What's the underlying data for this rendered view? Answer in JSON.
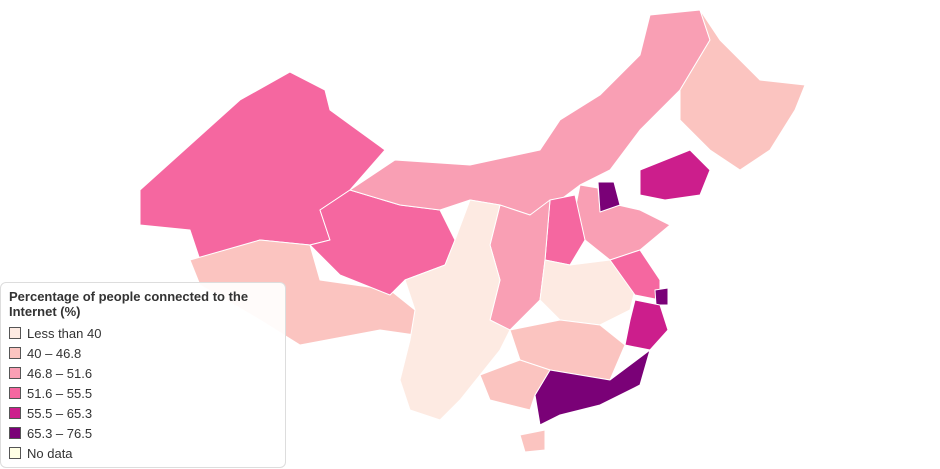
{
  "legend": {
    "title": "Percentage of people connected to the Internet (%)",
    "items": [
      {
        "label": "Less than 40",
        "color": "#fdeae2"
      },
      {
        "label": "40 – 46.8",
        "color": "#fbc4c0"
      },
      {
        "label": "46.8 – 51.6",
        "color": "#f99fb4"
      },
      {
        "label": "51.6 – 55.5",
        "color": "#f567a0"
      },
      {
        "label": "55.5 – 65.3",
        "color": "#cc1e8c"
      },
      {
        "label": "65.3 – 76.5",
        "color": "#7a0177"
      },
      {
        "label": "No data",
        "color": "#ffffe5"
      }
    ]
  }
}
